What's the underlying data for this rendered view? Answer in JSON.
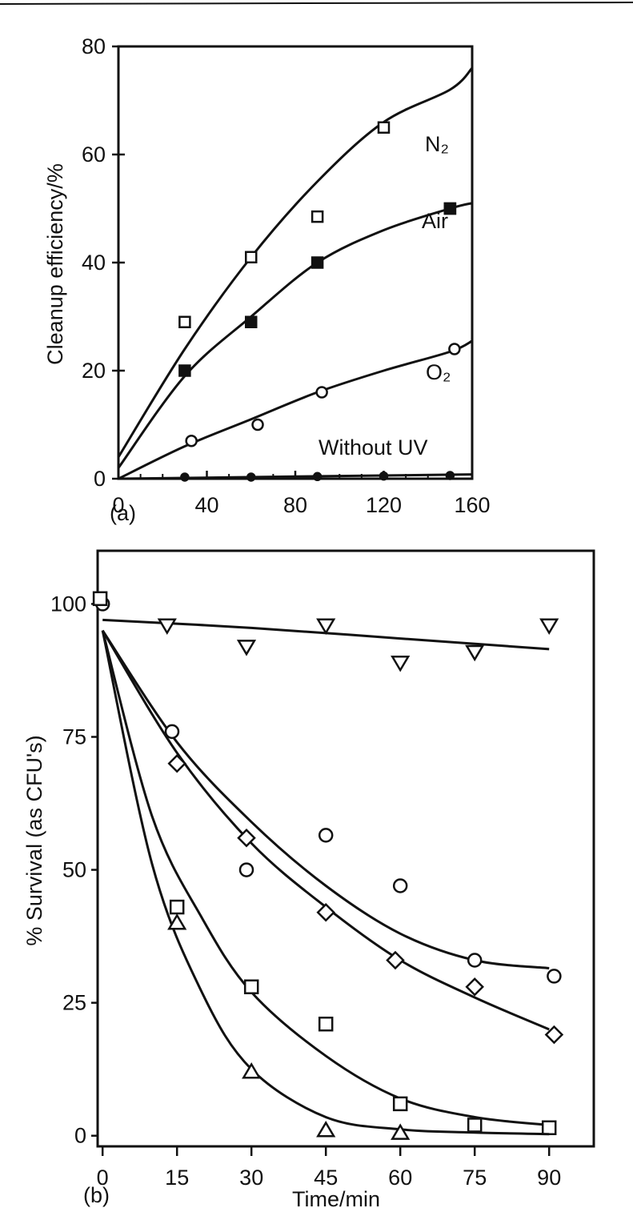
{
  "chart_data": [
    {
      "type": "scatter",
      "panel_label": "(a)",
      "title": "",
      "xlabel": "",
      "ylabel": "Cleanup efficiency/%",
      "xlim": [
        0,
        160
      ],
      "ylim": [
        0,
        80
      ],
      "x_ticks": [
        "0",
        "40",
        "80",
        "120",
        "160"
      ],
      "y_ticks": [
        "0",
        "20",
        "40",
        "60",
        "80"
      ],
      "grid": false,
      "series": [
        {
          "label": "N₂",
          "marker": "open-square",
          "points": [
            [
              30,
              29
            ],
            [
              60,
              41
            ],
            [
              90,
              48.5
            ],
            [
              120,
              65
            ],
            [
              150,
              50
            ]
          ],
          "fit": [
            [
              0,
              4
            ],
            [
              30,
              24
            ],
            [
              60,
              41
            ],
            [
              90,
              55
            ],
            [
              120,
              66
            ],
            [
              150,
              72
            ],
            [
              160,
              76
            ]
          ]
        },
        {
          "label": "Air",
          "marker": "filled-square",
          "points": [
            [
              30,
              20
            ],
            [
              60,
              29
            ],
            [
              90,
              40
            ],
            [
              150,
              50
            ]
          ],
          "fit": [
            [
              0,
              2
            ],
            [
              30,
              19
            ],
            [
              60,
              30
            ],
            [
              90,
              40
            ],
            [
              120,
              46
            ],
            [
              150,
              50
            ],
            [
              160,
              51
            ]
          ]
        },
        {
          "label": "O₂",
          "marker": "open-circle",
          "points": [
            [
              33,
              7
            ],
            [
              63,
              10
            ],
            [
              92,
              16
            ],
            [
              152,
              24
            ]
          ],
          "fit": [
            [
              0,
              0
            ],
            [
              30,
              6
            ],
            [
              60,
              11
            ],
            [
              90,
              16
            ],
            [
              120,
              20
            ],
            [
              150,
              23.5
            ],
            [
              160,
              25.5
            ]
          ]
        },
        {
          "label": "Without UV",
          "marker": "filled-circle",
          "points": [
            [
              30,
              0.3
            ],
            [
              60,
              0.3
            ],
            [
              90,
              0.4
            ],
            [
              120,
              0.5
            ],
            [
              150,
              0.6
            ]
          ],
          "fit": [
            [
              0,
              0
            ],
            [
              160,
              0.8
            ]
          ]
        }
      ]
    },
    {
      "type": "scatter",
      "panel_label": "(b)",
      "title": "",
      "xlabel": "Time/min",
      "ylabel": "% Survival (as CFU's)",
      "xlim": [
        -1,
        99
      ],
      "ylim": [
        -2,
        110
      ],
      "x_ticks": [
        "0",
        "15",
        "30",
        "45",
        "60",
        "75",
        "90"
      ],
      "y_ticks": [
        "0",
        "25",
        "50",
        "75",
        "100"
      ],
      "grid": false,
      "series": [
        {
          "marker": "open-triangle-down",
          "points": [
            [
              13,
              96
            ],
            [
              29,
              92
            ],
            [
              45,
              96
            ],
            [
              60,
              89
            ],
            [
              75,
              91
            ],
            [
              90,
              96
            ]
          ],
          "fit": [
            [
              0,
              97
            ],
            [
              30,
              95.5
            ],
            [
              60,
              93.5
            ],
            [
              90,
              91.5
            ]
          ]
        },
        {
          "marker": "open-circle",
          "points": [
            [
              0,
              100
            ],
            [
              14,
              76
            ],
            [
              29,
              50
            ],
            [
              45,
              56.5
            ],
            [
              60,
              47
            ],
            [
              75,
              33
            ],
            [
              91,
              30
            ]
          ],
          "fit": [
            [
              0,
              95
            ],
            [
              15,
              74
            ],
            [
              30,
              59
            ],
            [
              45,
              47
            ],
            [
              60,
              38
            ],
            [
              75,
              33
            ],
            [
              90,
              31.5
            ]
          ]
        },
        {
          "marker": "open-diamond",
          "points": [
            [
              15,
              70
            ],
            [
              29,
              56
            ],
            [
              45,
              42
            ],
            [
              59,
              33
            ],
            [
              75,
              28
            ],
            [
              91,
              19
            ]
          ],
          "fit": [
            [
              0,
              95
            ],
            [
              15,
              72
            ],
            [
              30,
              55
            ],
            [
              45,
              43
            ],
            [
              60,
              33
            ],
            [
              75,
              26
            ],
            [
              90,
              20
            ]
          ]
        },
        {
          "marker": "open-square",
          "points": [
            [
              -0.5,
              101
            ],
            [
              15,
              43
            ],
            [
              30,
              28
            ],
            [
              45,
              21
            ],
            [
              60,
              6
            ],
            [
              75,
              2
            ],
            [
              90,
              1.5
            ]
          ],
          "fit": [
            [
              0,
              95
            ],
            [
              10,
              60
            ],
            [
              20,
              41
            ],
            [
              30,
              27
            ],
            [
              45,
              15
            ],
            [
              60,
              7
            ],
            [
              75,
              3.5
            ],
            [
              90,
              2
            ]
          ]
        },
        {
          "marker": "open-triangle-up",
          "points": [
            [
              15,
              40
            ],
            [
              30,
              12
            ],
            [
              45,
              1
            ],
            [
              60,
              0.5
            ]
          ],
          "fit": [
            [
              0,
              95
            ],
            [
              10,
              51
            ],
            [
              20,
              27
            ],
            [
              30,
              12.5
            ],
            [
              45,
              3.5
            ],
            [
              60,
              1.2
            ],
            [
              75,
              0.6
            ],
            [
              90,
              0.3
            ]
          ]
        }
      ]
    }
  ]
}
